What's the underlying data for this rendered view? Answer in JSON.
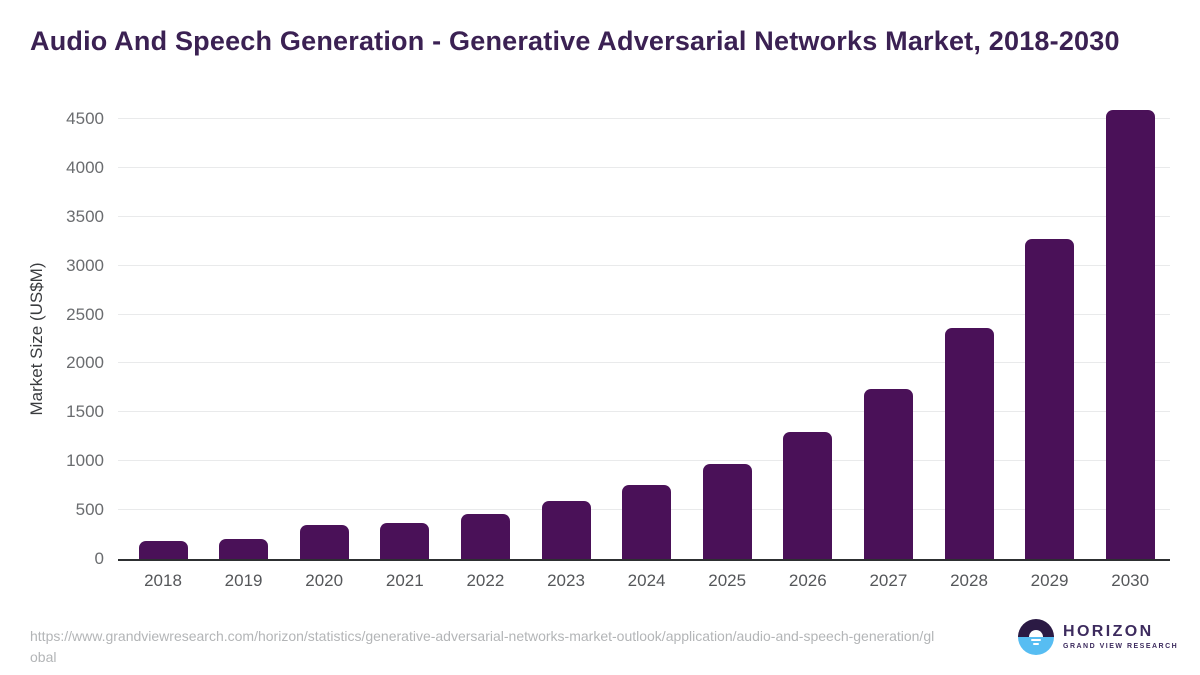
{
  "title": "Audio And Speech Generation - Generative Adversarial Networks Market, 2018-2030",
  "chart_data": {
    "type": "bar",
    "categories": [
      "2018",
      "2019",
      "2020",
      "2021",
      "2022",
      "2023",
      "2024",
      "2025",
      "2026",
      "2027",
      "2028",
      "2029",
      "2030"
    ],
    "values": [
      180,
      200,
      345,
      370,
      465,
      590,
      755,
      970,
      1300,
      1740,
      2360,
      3275,
      4595
    ],
    "title": "Audio And Speech Generation - Generative Adversarial Networks Market, 2018-2030",
    "xlabel": "",
    "ylabel": "Market Size (US$M)",
    "ylim": [
      0,
      4500
    ],
    "yticks": [
      0,
      500,
      1000,
      1500,
      2000,
      2500,
      3000,
      3500,
      4000,
      4500
    ],
    "grid": "horizontal",
    "legend": false
  },
  "colors": {
    "bar": "#4a1158",
    "title": "#3b2153",
    "axis_tick": "#55575a",
    "gridline": "#e9eaeb",
    "axis_line": "#2d2f31",
    "source_text": "#b3b5b7",
    "logo_purple": "#2b1a44",
    "logo_blue": "#57bdf2"
  },
  "footer": {
    "source_url": "https://www.grandviewresearch.com/horizon/statistics/generative-adversarial-networks-market-outlook/application/audio-and-speech-generation/global",
    "logo": {
      "name": "HORIZON",
      "subtitle": "GRAND VIEW RESEARCH"
    }
  }
}
